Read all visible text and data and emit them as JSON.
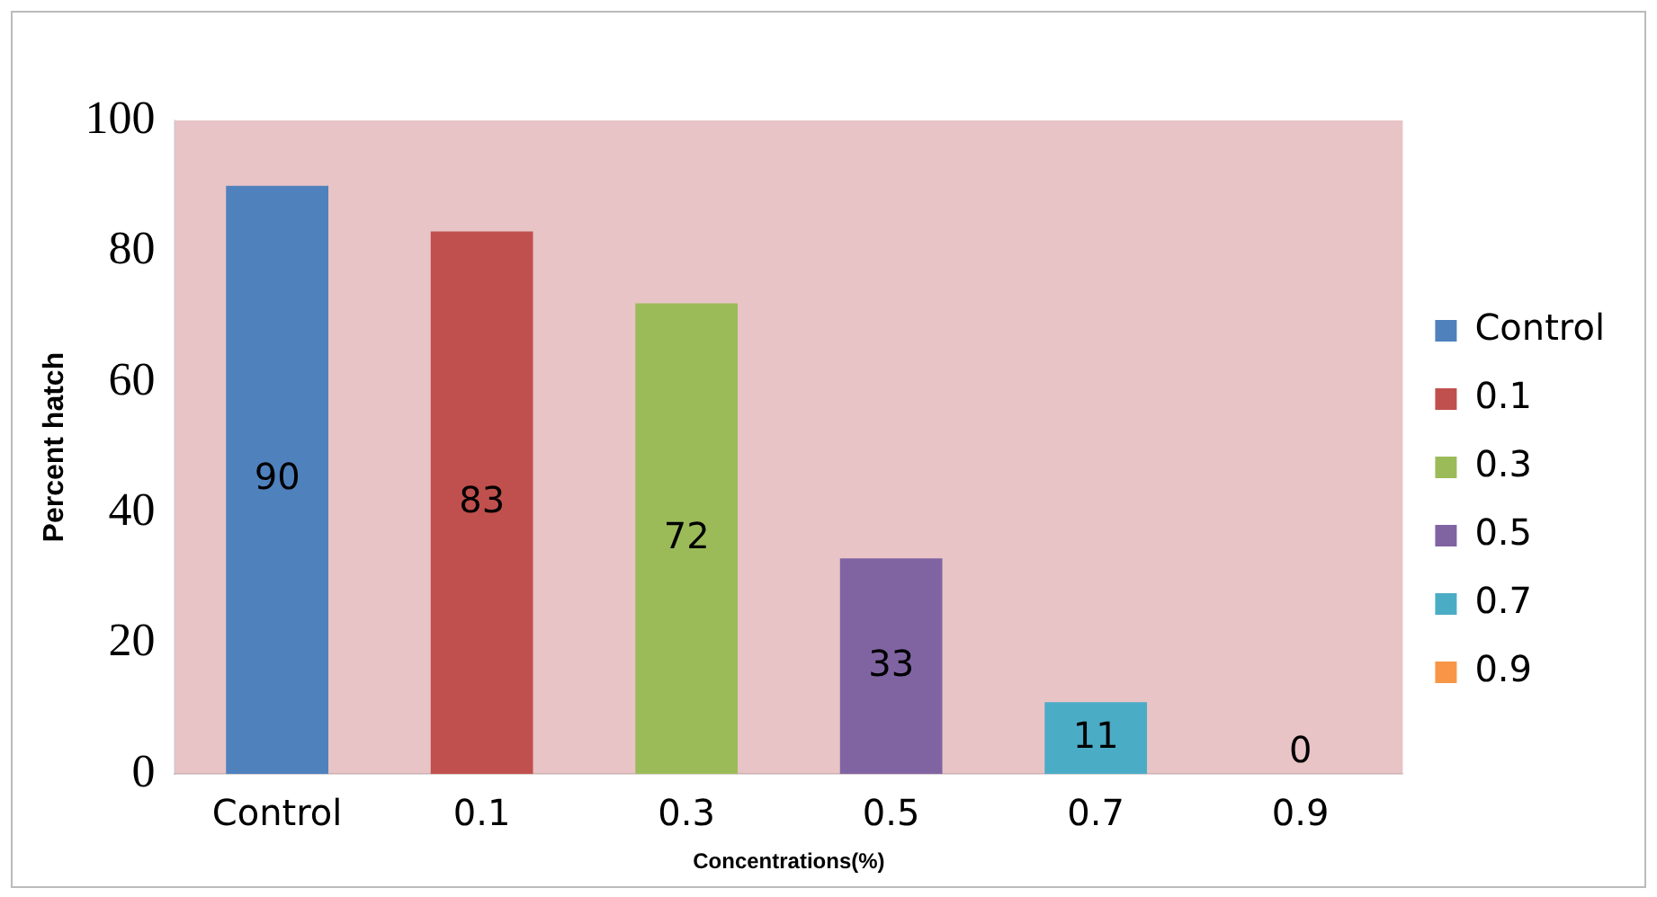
{
  "chart_data": {
    "type": "bar",
    "xlabel": "Concentrations(%)",
    "ylabel": "Percent hatch",
    "categories": [
      "Control",
      "0.1",
      "0.3",
      "0.5",
      "0.7",
      "0.9"
    ],
    "series": [
      {
        "name": "Control",
        "color": "#4f81bd",
        "values": [
          90,
          null,
          null,
          null,
          null,
          null
        ]
      },
      {
        "name": "0.1",
        "color": "#c0504d",
        "values": [
          null,
          83,
          null,
          null,
          null,
          null
        ]
      },
      {
        "name": "0.3",
        "color": "#9bbb59",
        "values": [
          null,
          null,
          72,
          null,
          null,
          null
        ]
      },
      {
        "name": "0.5",
        "color": "#8064a2",
        "values": [
          null,
          null,
          null,
          33,
          null,
          null
        ]
      },
      {
        "name": "0.7",
        "color": "#4bacc6",
        "values": [
          null,
          null,
          null,
          null,
          11,
          null
        ]
      },
      {
        "name": "0.9",
        "color": "#f79646",
        "values": [
          null,
          null,
          null,
          null,
          null,
          0
        ]
      }
    ],
    "ylim": [
      0,
      100
    ],
    "yticks": [
      0,
      20,
      40,
      60,
      80,
      100
    ],
    "grid": false,
    "legend": "right",
    "data_labels": true
  }
}
